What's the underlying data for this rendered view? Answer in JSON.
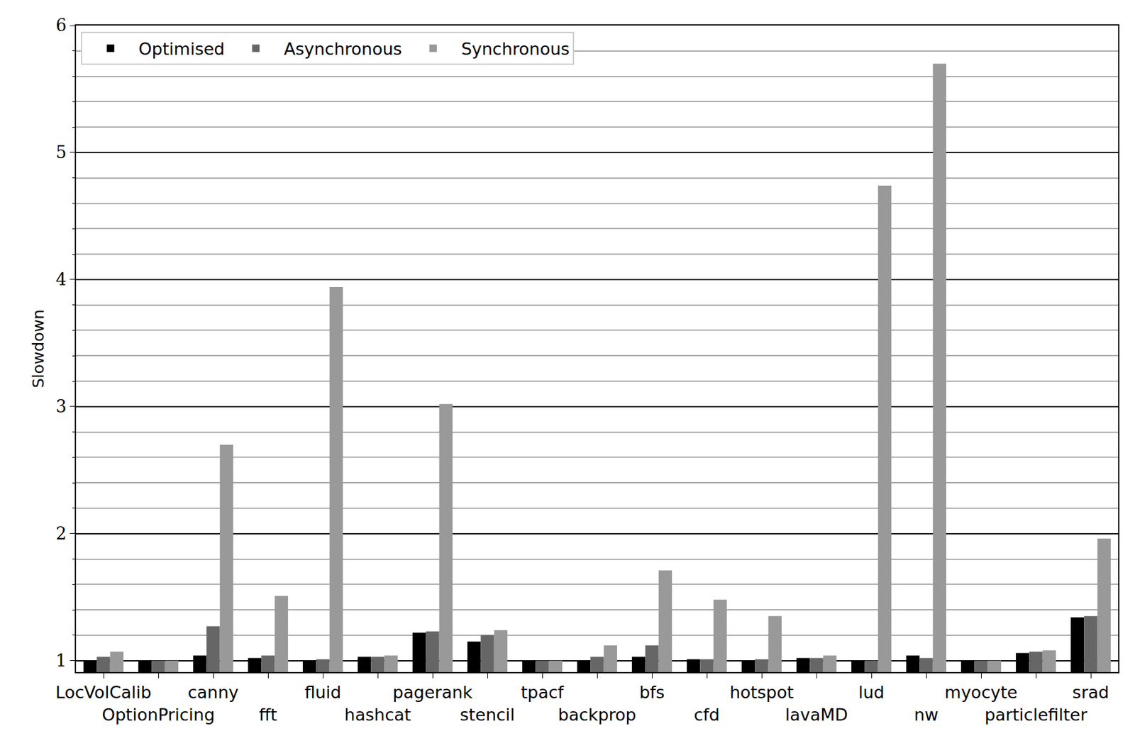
{
  "chart_data": {
    "type": "bar",
    "y_label": "Slowdown",
    "categories": [
      "LocVolCalib",
      "OptionPricing",
      "canny",
      "fft",
      "fluid",
      "hashcat",
      "pagerank",
      "stencil",
      "tpacf",
      "backprop",
      "bfs",
      "cfd",
      "hotspot",
      "lavaMD",
      "lud",
      "nw",
      "myocyte",
      "particlefilter",
      "srad"
    ],
    "series": [
      {
        "name": "Optimised",
        "color": "#000000",
        "values": [
          1.0,
          1.0,
          1.04,
          1.02,
          1.0,
          1.03,
          1.22,
          1.15,
          1.0,
          1.0,
          1.03,
          1.01,
          1.0,
          1.02,
          1.0,
          1.04,
          1.0,
          1.06,
          1.34
        ]
      },
      {
        "name": "Asynchronous",
        "color": "#666666",
        "values": [
          1.03,
          1.0,
          1.27,
          1.04,
          1.01,
          1.03,
          1.23,
          1.2,
          1.0,
          1.03,
          1.12,
          1.01,
          1.01,
          1.02,
          1.0,
          1.02,
          1.0,
          1.07,
          1.35
        ]
      },
      {
        "name": "Synchronous",
        "color": "#999999",
        "values": [
          1.07,
          1.0,
          2.7,
          1.51,
          3.94,
          1.04,
          3.02,
          1.24,
          1.0,
          1.12,
          1.71,
          1.48,
          1.35,
          1.04,
          4.74,
          5.7,
          1.0,
          1.08,
          1.96
        ]
      }
    ],
    "ylim": [
      0.91,
      6
    ],
    "yticks": [
      1,
      2,
      3,
      4,
      5,
      6
    ],
    "grid": true,
    "legend": "top-left"
  }
}
